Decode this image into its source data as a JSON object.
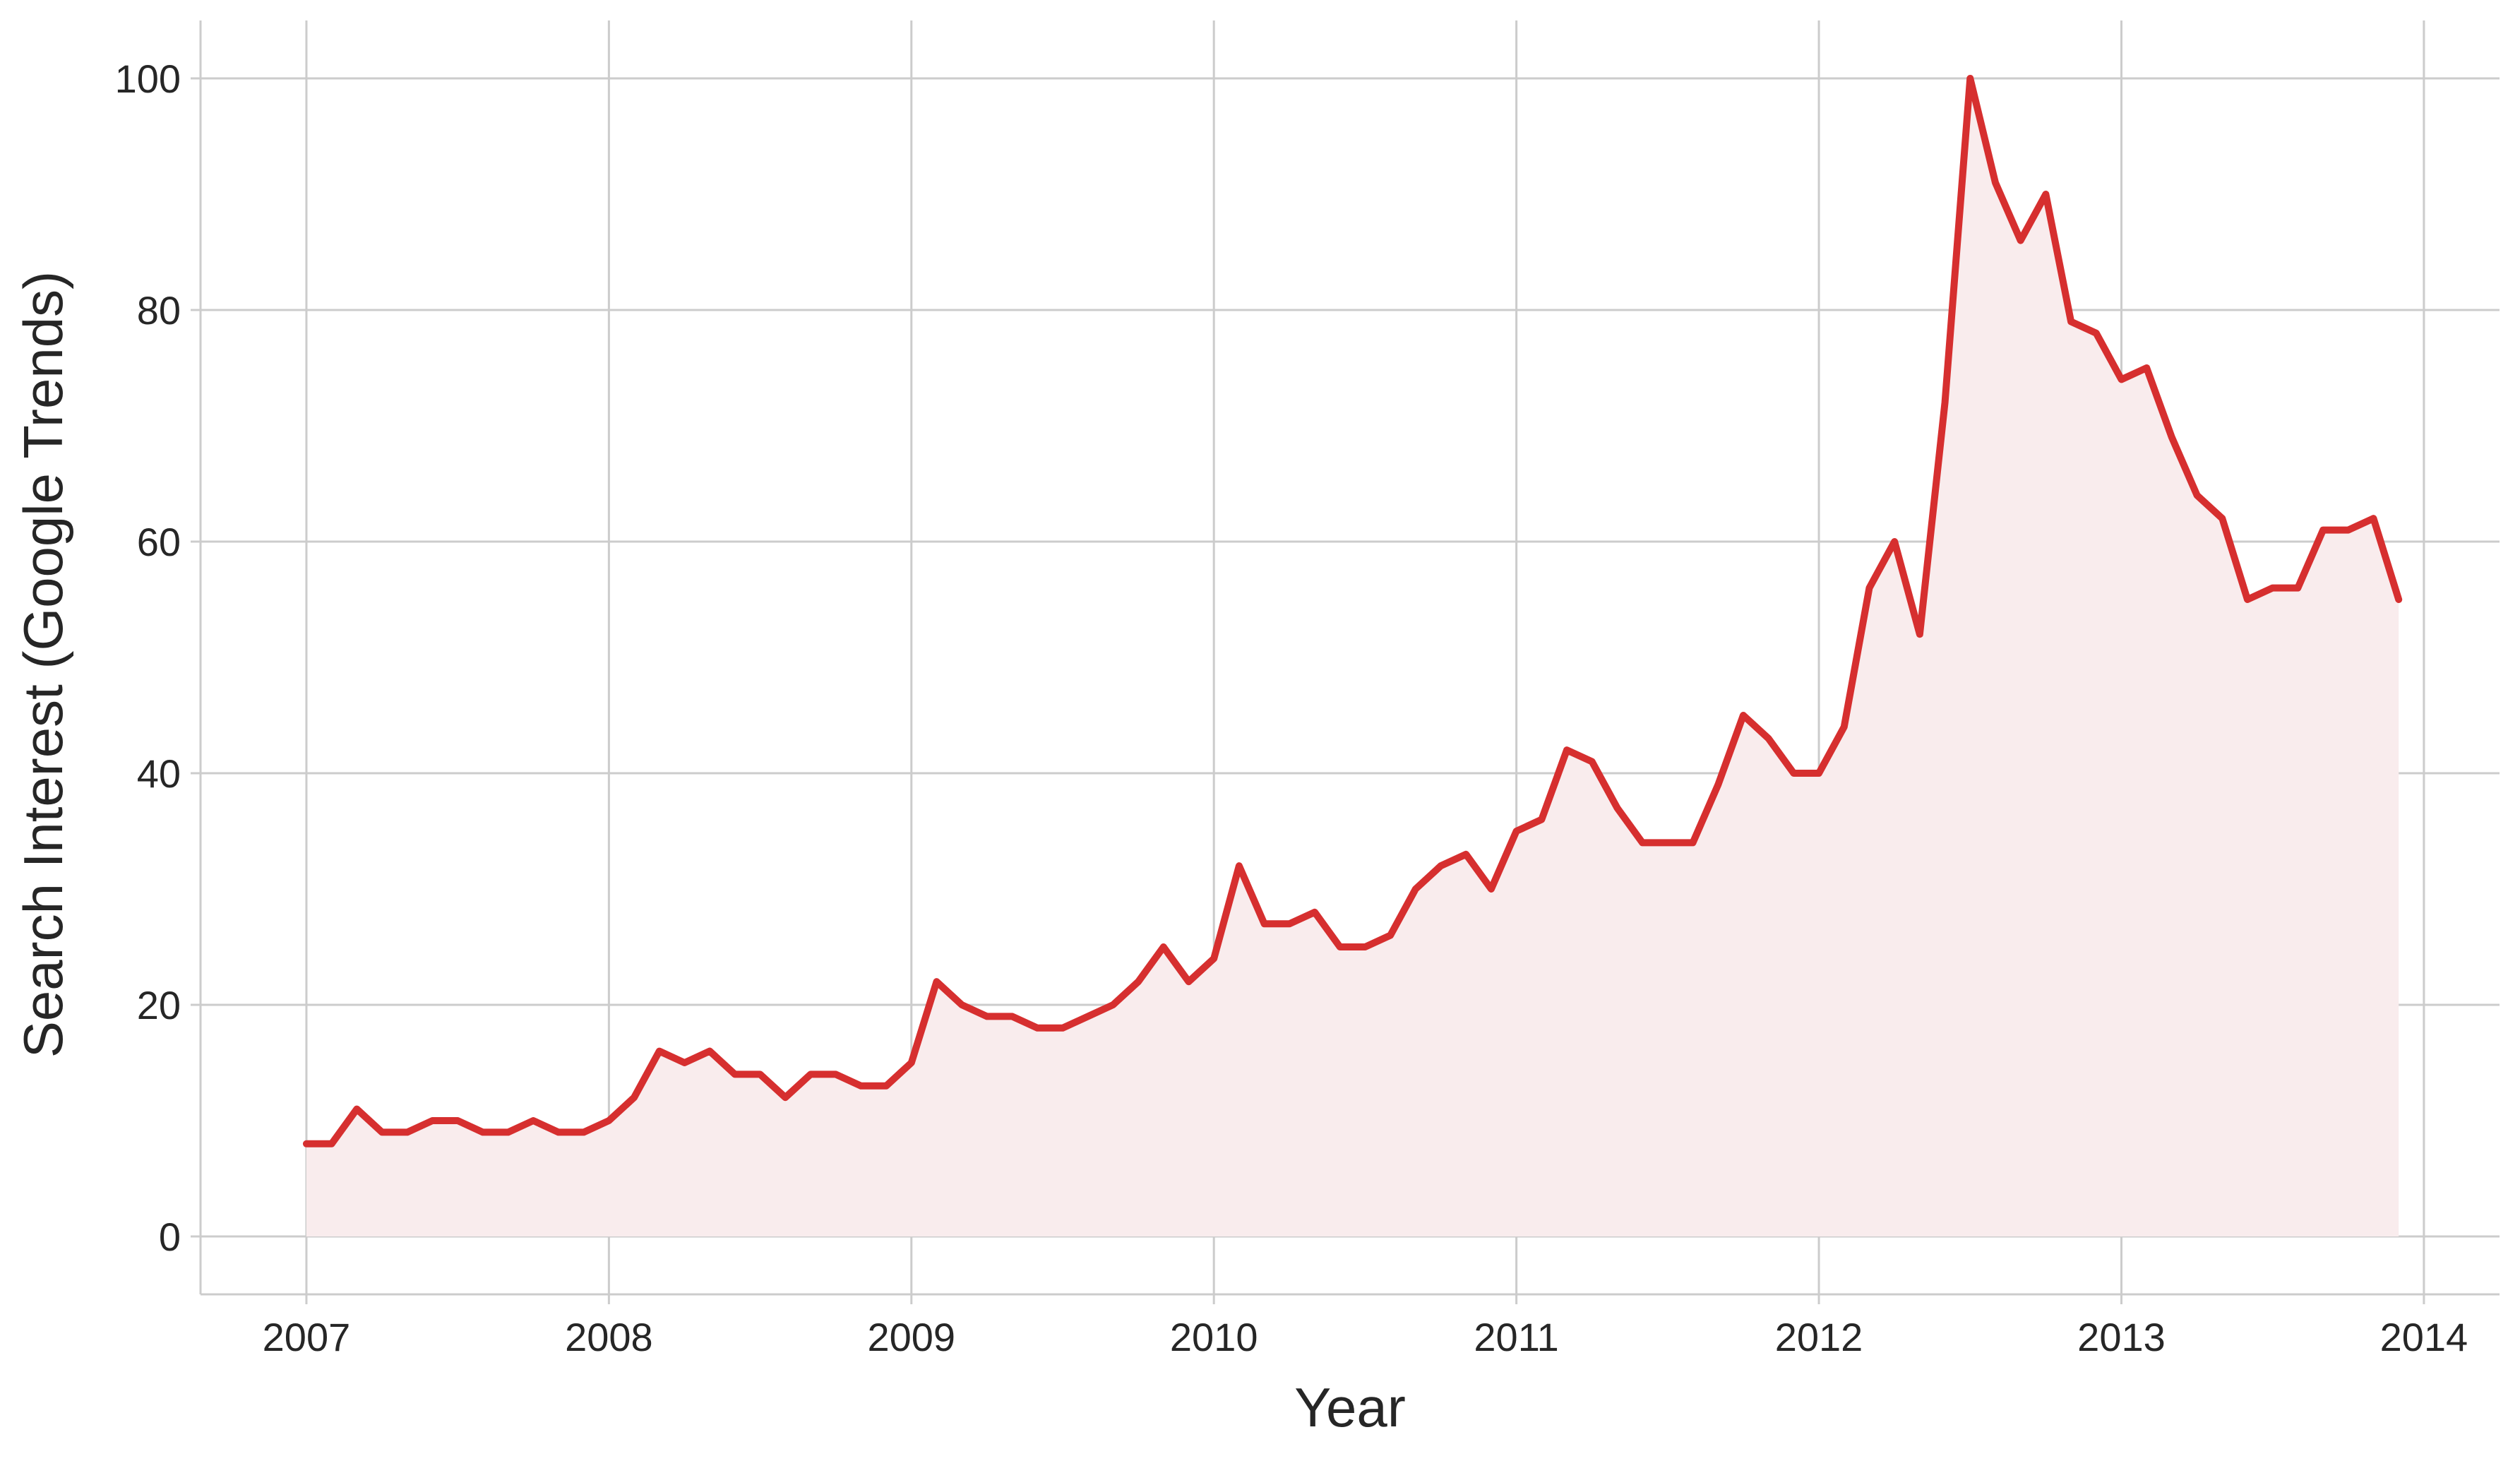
{
  "chart_data": {
    "type": "area",
    "title": "",
    "xlabel": "Year",
    "ylabel": "Search Interest (Google Trends)",
    "xlim": [
      2006.65,
      2014.25
    ],
    "ylim": [
      -5,
      105
    ],
    "x_ticks": [
      2007,
      2008,
      2009,
      2010,
      2011,
      2012,
      2013,
      2014
    ],
    "x_tick_labels": [
      "2007",
      "2008",
      "2009",
      "2010",
      "2011",
      "2012",
      "2013",
      "2014"
    ],
    "y_ticks": [
      0,
      20,
      40,
      60,
      80,
      100
    ],
    "y_tick_labels": [
      "0",
      "20",
      "40",
      "60",
      "80",
      "100"
    ],
    "grid": true,
    "legend": "none",
    "line_color": "#d62f2f",
    "fill_color": "#f9eced",
    "series": [
      {
        "x_start": "2007-01",
        "step": "month",
        "values": [
          8,
          8,
          11,
          9,
          9,
          10,
          10,
          9,
          9,
          10,
          9,
          9,
          10,
          12,
          16,
          15,
          16,
          14,
          14,
          12,
          14,
          14,
          13,
          13,
          15,
          22,
          20,
          19,
          19,
          18,
          18,
          19,
          20,
          22,
          25,
          22,
          24,
          32,
          27,
          27,
          28,
          25,
          25,
          26,
          30,
          32,
          33,
          30,
          35,
          36,
          42,
          41,
          37,
          34,
          34,
          34,
          39,
          45,
          43,
          40,
          40,
          44,
          56,
          60,
          52,
          72,
          100,
          91,
          86,
          90,
          79,
          78,
          74,
          75,
          69,
          64,
          62,
          55,
          56,
          56,
          61,
          61,
          62,
          55
        ]
      }
    ]
  }
}
